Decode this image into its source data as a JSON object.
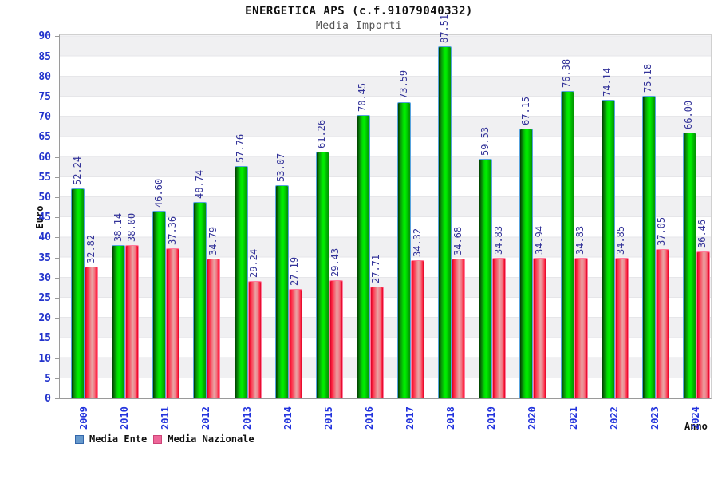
{
  "page": {
    "background": "#ffffff"
  },
  "chart_data": {
    "type": "bar",
    "title": "ENERGETICA APS (c.f.91079040332)",
    "subtitle": "Media Importi",
    "xlabel": "Anno",
    "ylabel": "Euro",
    "ylim": [
      0,
      90
    ],
    "ytick_step": 5,
    "grid": "horizontal gridlines every 5 units with alternating white/light-gray bands",
    "legend_position": "bottom-left",
    "value_label_format": "two decimals, rotated 90deg above each bar",
    "categories": [
      "2009",
      "2010",
      "2011",
      "2012",
      "2013",
      "2014",
      "2015",
      "2016",
      "2017",
      "2018",
      "2019",
      "2020",
      "2021",
      "2022",
      "2023",
      "2024"
    ],
    "series": [
      {
        "name": "Media Ente",
        "legend_swatch_color": "#6699cc",
        "bar_color": "#00dd00",
        "values": [
          52.24,
          38.14,
          46.6,
          48.74,
          57.76,
          53.07,
          61.26,
          70.45,
          73.59,
          87.51,
          59.53,
          67.15,
          76.38,
          74.14,
          75.18,
          66.0
        ]
      },
      {
        "name": "Media Nazionale",
        "legend_swatch_color": "#ee6699",
        "bar_color": "#ff2440",
        "values": [
          32.82,
          38.0,
          37.36,
          34.79,
          29.24,
          27.19,
          29.43,
          27.71,
          34.32,
          34.68,
          34.83,
          34.94,
          34.83,
          34.85,
          37.05,
          36.46
        ]
      }
    ]
  },
  "colors": {
    "value_label": "#333399",
    "y_tick_label": "#2233cc",
    "x_tick_label": "#2233dd",
    "band_gray": "#f0f0f2",
    "plot_border": "#9a9a9a",
    "bar_green_border": "#58a3de",
    "bar_red_border": "#ff7b9d"
  }
}
